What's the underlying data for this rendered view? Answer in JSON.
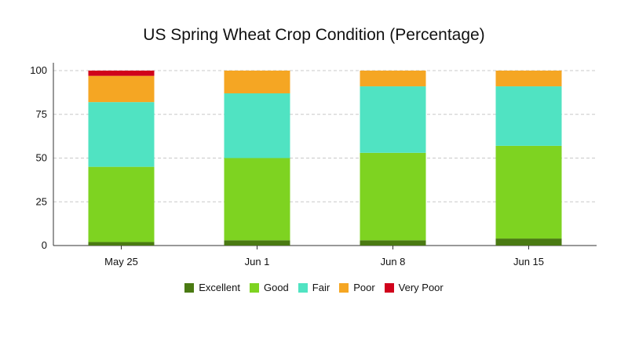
{
  "chart_data": {
    "type": "bar",
    "stacked": true,
    "title": "US Spring Wheat Crop Condition (Percentage)",
    "xlabel": "",
    "ylabel": "",
    "categories": [
      "May 25",
      "Jun 1",
      "Jun 8",
      "Jun 15"
    ],
    "ylim": [
      0,
      100
    ],
    "yticks": [
      0,
      25,
      50,
      75,
      100
    ],
    "grid": true,
    "grid_style": "dashed",
    "legend_position": "bottom",
    "series": [
      {
        "name": "Excellent",
        "color": "#4a7a12",
        "values": [
          2,
          3,
          3,
          4
        ]
      },
      {
        "name": "Good",
        "color": "#7ed321",
        "values": [
          43,
          47,
          50,
          53
        ]
      },
      {
        "name": "Fair",
        "color": "#50e3c2",
        "values": [
          37,
          37,
          38,
          34
        ]
      },
      {
        "name": "Poor",
        "color": "#f5a623",
        "values": [
          15,
          13,
          9,
          9
        ]
      },
      {
        "name": "Very Poor",
        "color": "#d0021b",
        "values": [
          3,
          0,
          0,
          0
        ]
      }
    ]
  }
}
